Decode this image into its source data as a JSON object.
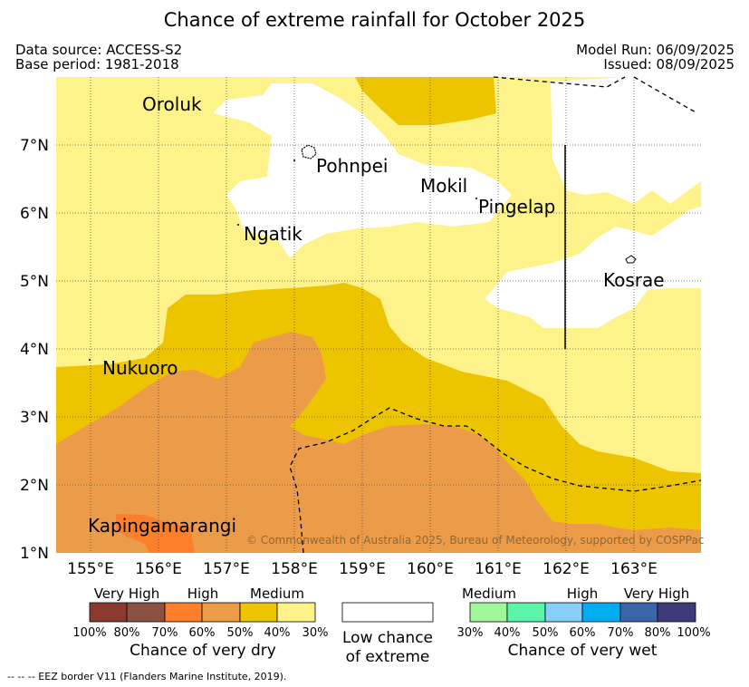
{
  "title": "Chance of extreme rainfall for October 2025",
  "meta": {
    "data_source": "Data source: ACCESS-S2",
    "base_period": "Base period: 1981-2018",
    "model_run": "Model Run: 06/09/2025",
    "issued": "Issued: 08/09/2025"
  },
  "map": {
    "x_ticks": [
      "155°E",
      "156°E",
      "157°E",
      "158°E",
      "159°E",
      "160°E",
      "161°E",
      "162°E",
      "163°E"
    ],
    "y_ticks": [
      "7°N",
      "6°N",
      "5°N",
      "4°N",
      "3°N",
      "2°N",
      "1°N"
    ],
    "places": {
      "oroluk": "Oroluk",
      "pohnpei": "Pohnpei",
      "mokil": "Mokil",
      "pingelap": "Pingelap",
      "ngatik": "Ngatik",
      "kosrae": "Kosrae",
      "nukuoro": "Nukuoro",
      "kapingamarangi": "Kapingamarangi"
    },
    "copyright": "© Commonwealth of Australia 2025, Bureau of Meteorology, supported by COSPPac",
    "colors": {
      "medium_dry_30_40": "#fdf38a",
      "medium_dry_40_50": "#ecc500",
      "high_dry_50_60": "#ec9b49",
      "high_dry_60_70": "#fe7f2b",
      "low_chance": "#ffffff"
    }
  },
  "legend": {
    "dry": {
      "headers": [
        "Very High",
        "High",
        "Medium"
      ],
      "percents": [
        "100%",
        "80%",
        "70%",
        "60%",
        "50%",
        "40%",
        "30%"
      ],
      "colors": [
        "#8b3a2f",
        "#8b5243",
        "#fe7f2b",
        "#ec9b49",
        "#ecc500",
        "#fdf38a"
      ],
      "title": "Chance of very dry"
    },
    "low": {
      "line1": "Low chance",
      "line2": "of extreme",
      "color": "#ffffff"
    },
    "wet": {
      "headers": [
        "Medium",
        "High",
        "Very High"
      ],
      "percents": [
        "30%",
        "40%",
        "50%",
        "60%",
        "70%",
        "80%",
        "100%"
      ],
      "colors": [
        "#a0f79a",
        "#5cf4a8",
        "#87cefa",
        "#00aeef",
        "#3c64a8",
        "#3f3a7a"
      ],
      "title": "Chance of very wet"
    }
  },
  "footer": "--  --  -- EEZ border V11 (Flanders Marine Institute, 2019)."
}
